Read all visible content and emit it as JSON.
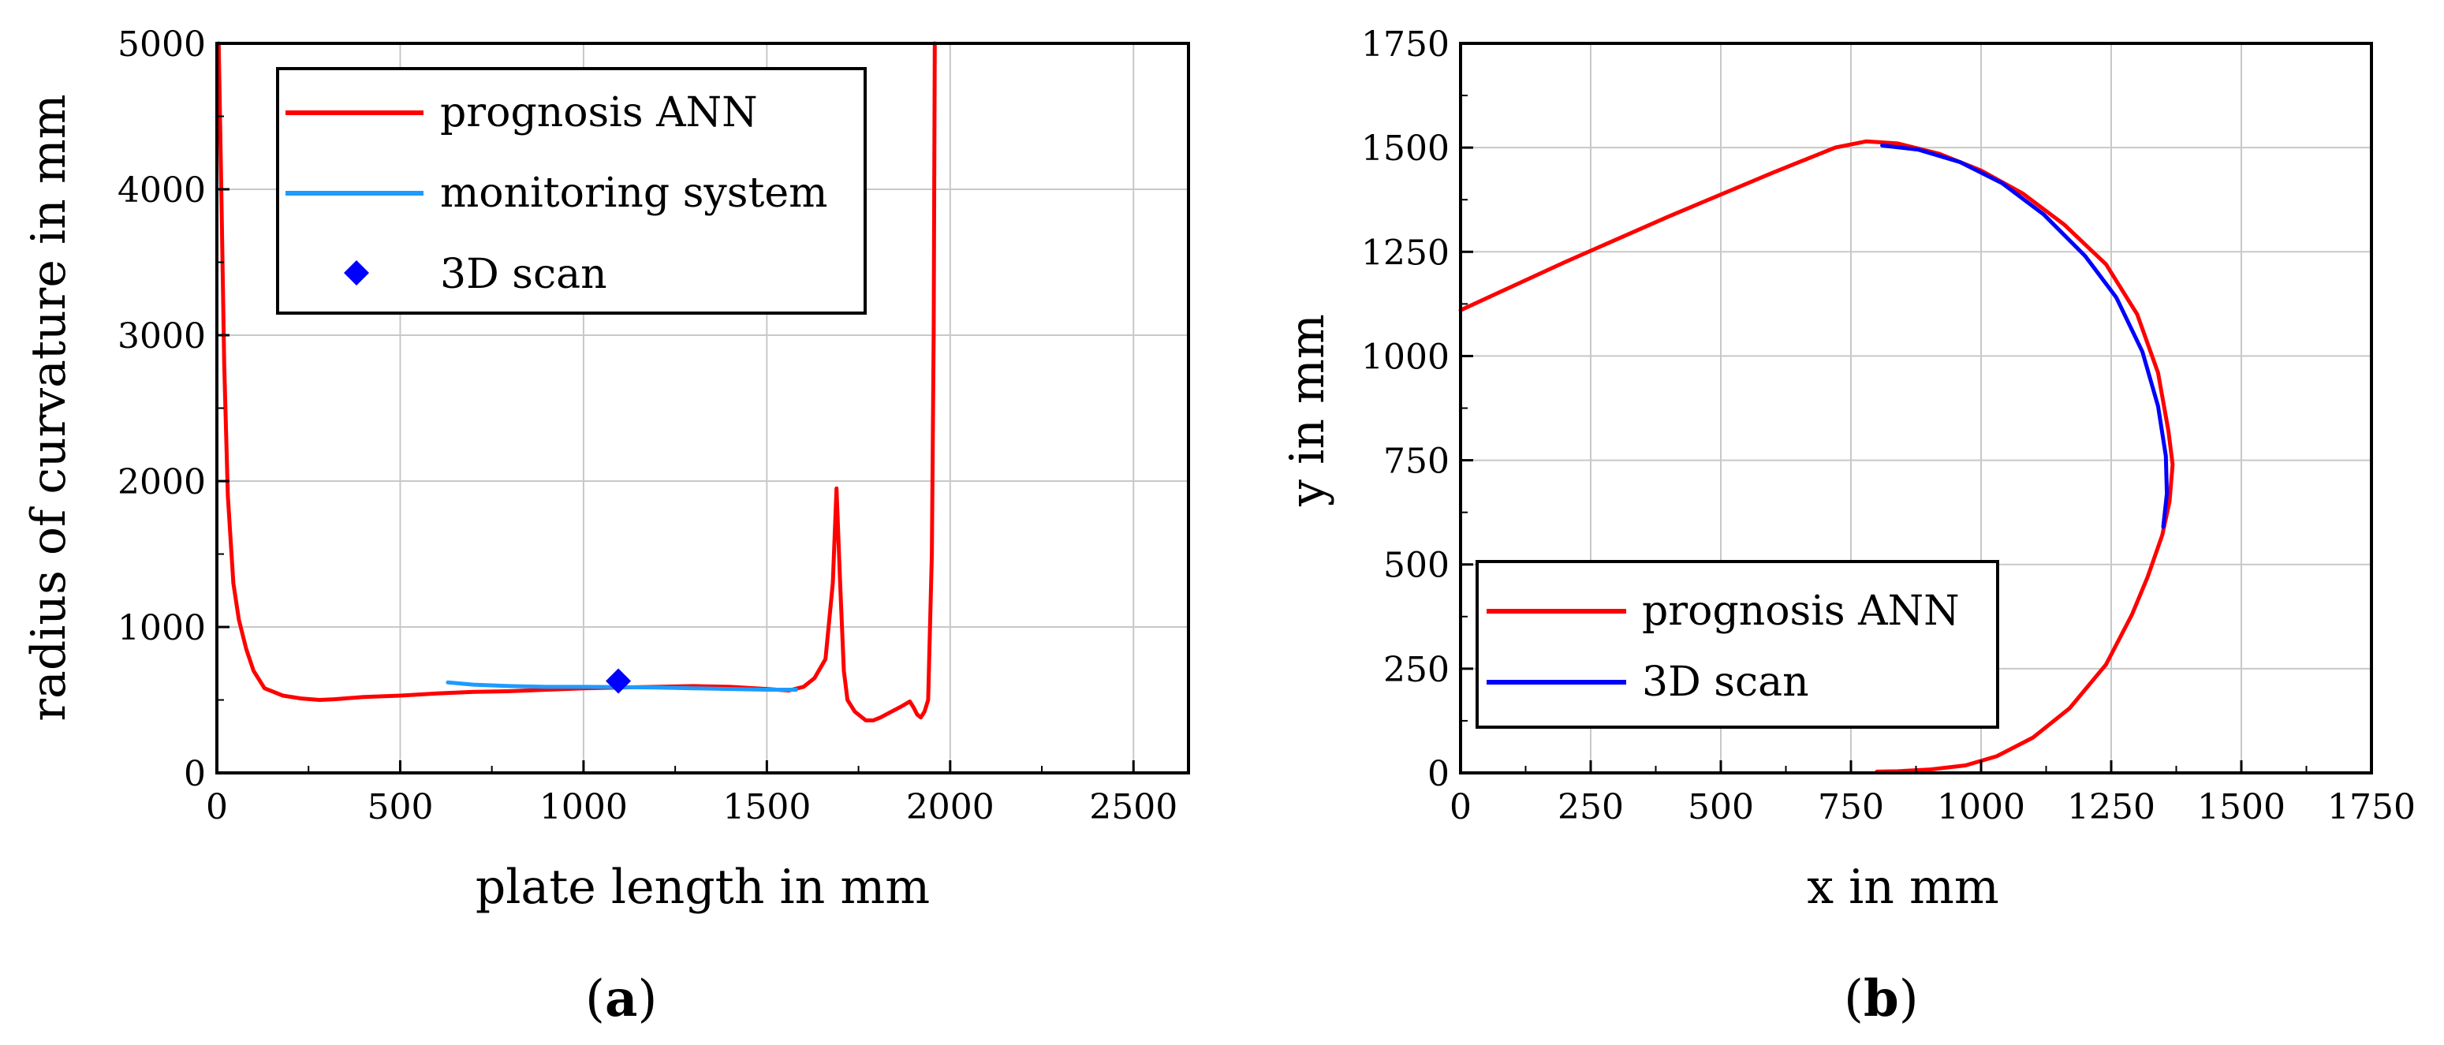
{
  "chart_data": [
    {
      "panel": "a",
      "type": "line",
      "caption": {
        "open": "(",
        "letter": "a",
        "close": ")"
      },
      "xlabel": "plate length in mm",
      "ylabel": "radius of curvature in mm",
      "xlim": [
        0,
        2650
      ],
      "ylim": [
        0,
        5000
      ],
      "xticks": [
        0,
        500,
        1000,
        1500,
        2000,
        2500
      ],
      "yticks": [
        0,
        1000,
        2000,
        3000,
        4000,
        5000
      ],
      "grid": true,
      "legend_position": "top-left",
      "series": [
        {
          "name": "prognosis ANN",
          "kind": "line",
          "color": "#ff0000",
          "x": [
            5,
            12,
            20,
            30,
            45,
            60,
            80,
            100,
            130,
            180,
            230,
            280,
            320,
            400,
            500,
            600,
            700,
            800,
            900,
            1000,
            1100,
            1200,
            1300,
            1400,
            1500,
            1560,
            1600,
            1630,
            1660,
            1680,
            1690,
            1700,
            1710,
            1720,
            1740,
            1770,
            1790,
            1810,
            1840,
            1870,
            1890,
            1900,
            1910,
            1920,
            1930,
            1940,
            1950,
            1955,
            1958
          ],
          "y": [
            5000,
            4000,
            2800,
            1900,
            1300,
            1050,
            850,
            700,
            580,
            530,
            510,
            500,
            505,
            520,
            530,
            545,
            555,
            560,
            570,
            580,
            585,
            590,
            595,
            590,
            575,
            565,
            590,
            650,
            780,
            1300,
            1950,
            1300,
            700,
            500,
            420,
            360,
            360,
            380,
            420,
            460,
            490,
            450,
            400,
            380,
            420,
            500,
            1500,
            3000,
            5000
          ]
        },
        {
          "name": "monitoring system",
          "kind": "line",
          "color": "#1e9bff",
          "x": [
            630,
            700,
            800,
            900,
            1000,
            1100,
            1200,
            1300,
            1400,
            1500,
            1580
          ],
          "y": [
            620,
            605,
            595,
            590,
            590,
            588,
            585,
            580,
            575,
            570,
            570
          ]
        },
        {
          "name": "3D scan",
          "kind": "marker",
          "marker": "diamond",
          "color": "#0000ff",
          "x": [
            1095
          ],
          "y": [
            630
          ]
        }
      ]
    },
    {
      "panel": "b",
      "type": "line",
      "caption": {
        "open": "(",
        "letter": "b",
        "close": ")"
      },
      "xlabel": "x in mm",
      "ylabel": "y in mm",
      "xlim": [
        0,
        1750
      ],
      "ylim": [
        0,
        1750
      ],
      "xticks": [
        0,
        250,
        500,
        750,
        1000,
        1250,
        1500,
        1750
      ],
      "yticks": [
        0,
        250,
        500,
        750,
        1000,
        1250,
        1500,
        1750
      ],
      "grid": true,
      "legend_position": "bottom-left",
      "series": [
        {
          "name": "prognosis ANN",
          "kind": "line",
          "color": "#ff0000",
          "x": [
            0,
            200,
            400,
            600,
            720,
            780,
            840,
            920,
            1000,
            1080,
            1160,
            1240,
            1300,
            1340,
            1360,
            1368,
            1362,
            1348,
            1320,
            1290,
            1240,
            1170,
            1100,
            1030,
            970,
            900,
            840,
            800
          ],
          "y": [
            1110,
            1225,
            1335,
            1440,
            1500,
            1515,
            1510,
            1485,
            1445,
            1390,
            1315,
            1220,
            1100,
            960,
            820,
            740,
            650,
            570,
            470,
            380,
            260,
            155,
            85,
            40,
            18,
            8,
            4,
            3
          ]
        },
        {
          "name": "3D scan",
          "kind": "line",
          "color": "#0000ff",
          "x": [
            810,
            880,
            960,
            1040,
            1120,
            1200,
            1260,
            1310,
            1340,
            1355,
            1357,
            1350
          ],
          "y": [
            1505,
            1495,
            1465,
            1415,
            1340,
            1240,
            1140,
            1010,
            880,
            760,
            670,
            590
          ]
        }
      ]
    }
  ]
}
